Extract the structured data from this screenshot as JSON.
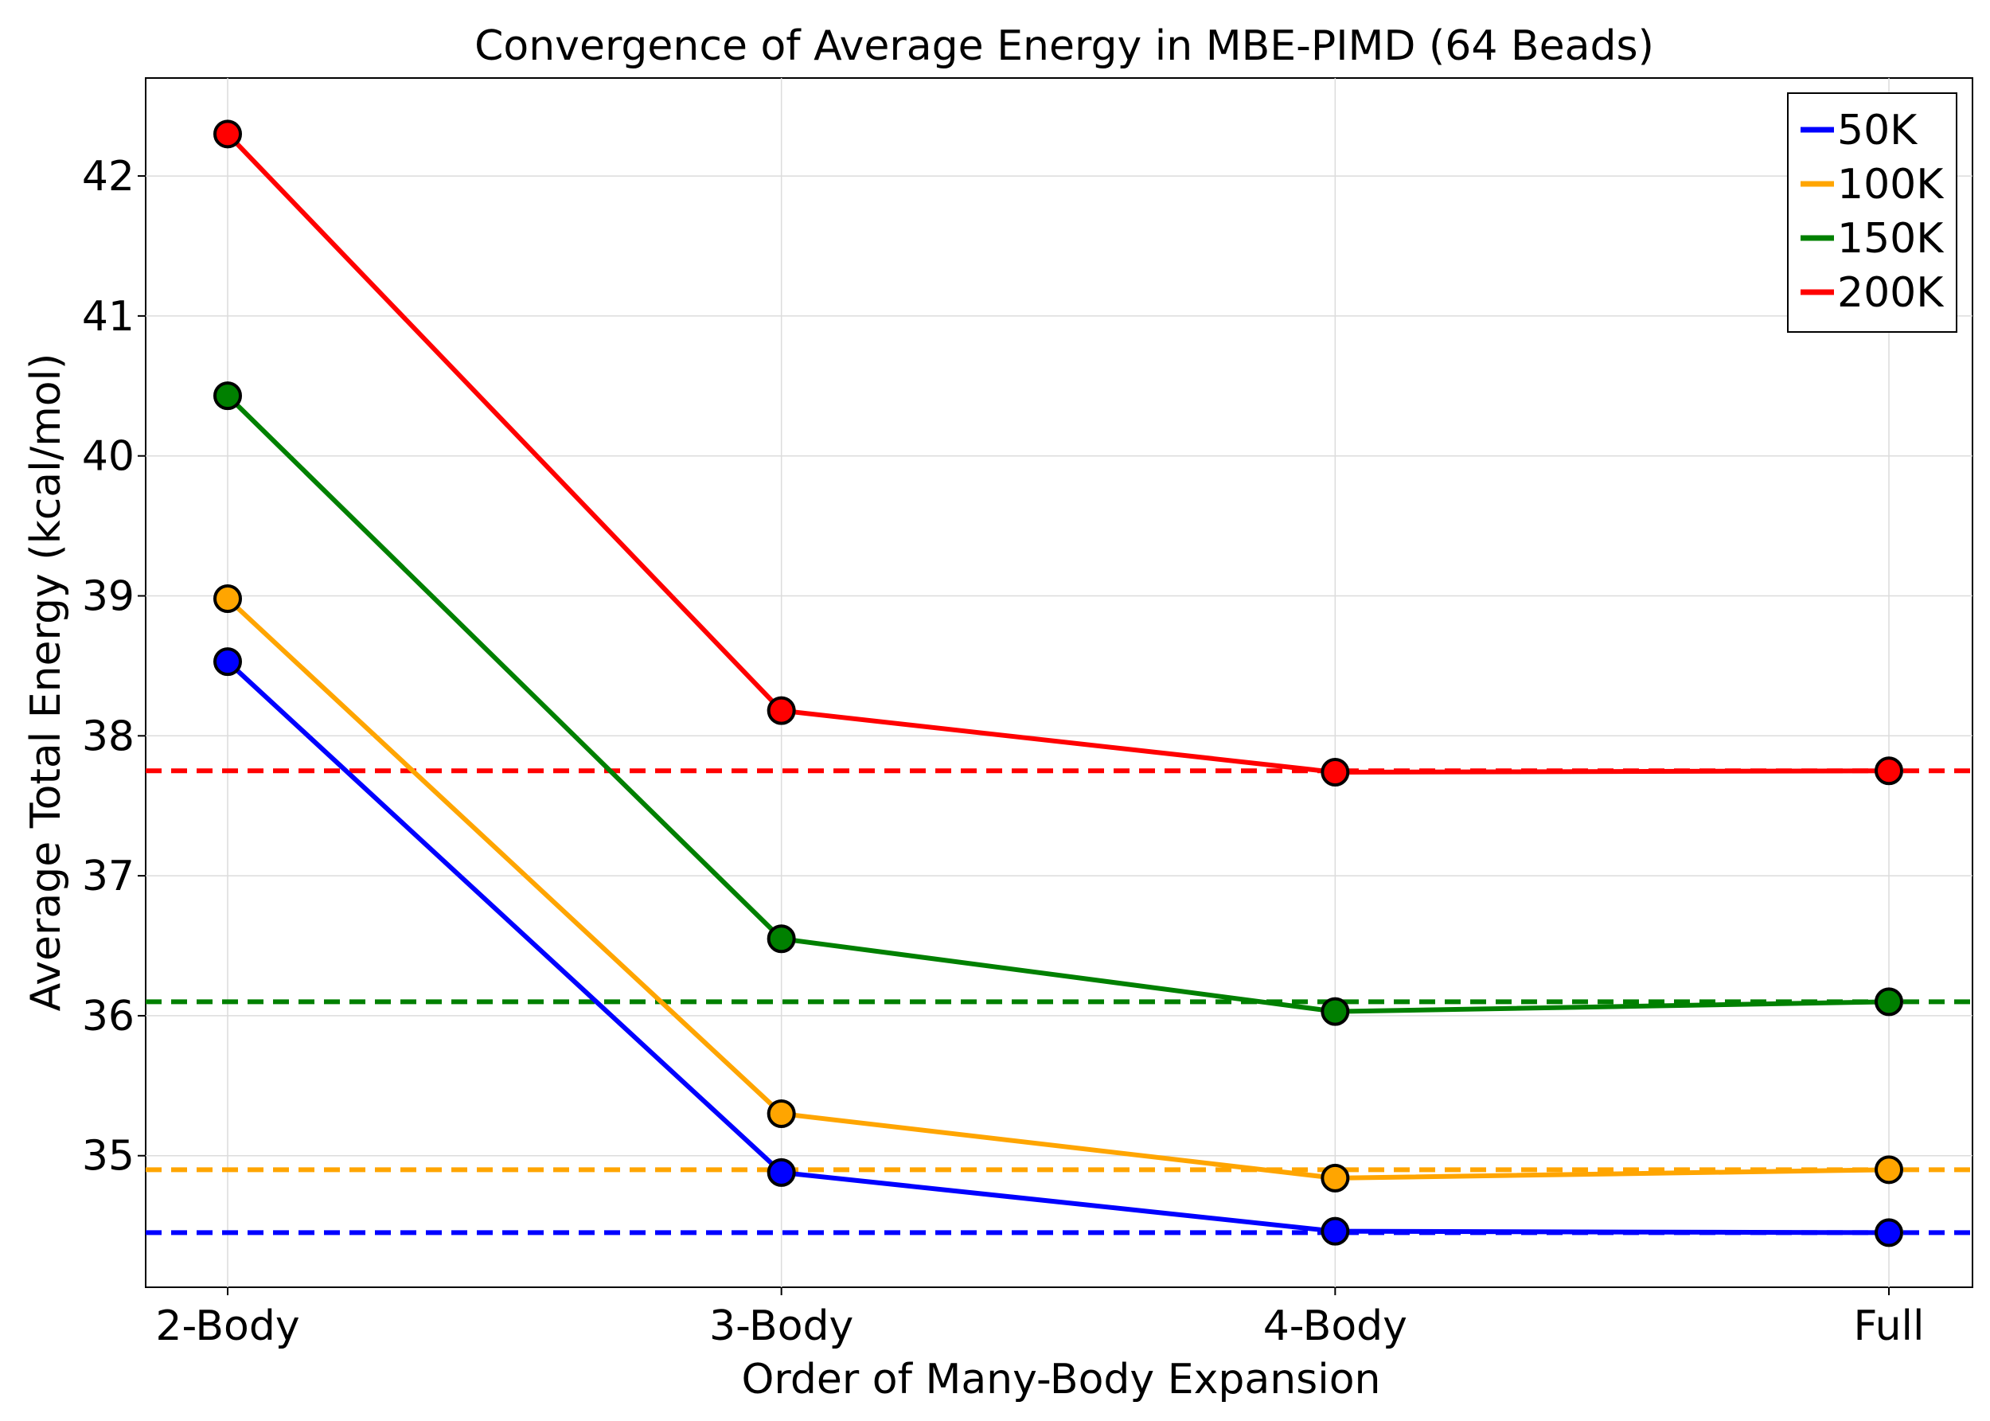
{
  "chart_data": {
    "type": "line",
    "title": "Convergence of Average Energy in MBE-PIMD (64 Beads)",
    "xlabel": "Order of Many-Body Expansion",
    "ylabel": "Average Total Energy (kcal/mol)",
    "categories": [
      "2-Body",
      "3-Body",
      "4-Body",
      "Full"
    ],
    "ylim": [
      34.06,
      42.7
    ],
    "yticks": [
      35,
      36,
      37,
      38,
      39,
      40,
      41,
      42
    ],
    "grid": true,
    "legend_position": "top-right",
    "series": [
      {
        "name": "50K",
        "color": "#0000ff",
        "values": [
          38.53,
          34.88,
          34.46,
          34.45
        ],
        "reference": 34.45
      },
      {
        "name": "100K",
        "color": "#ffa500",
        "values": [
          38.98,
          35.3,
          34.84,
          34.9
        ],
        "reference": 34.9
      },
      {
        "name": "150K",
        "color": "#008000",
        "values": [
          40.43,
          36.55,
          36.03,
          36.1
        ],
        "reference": 36.1
      },
      {
        "name": "200K",
        "color": "#ff0000",
        "values": [
          42.3,
          38.18,
          37.74,
          37.75
        ],
        "reference": 37.75
      }
    ]
  }
}
